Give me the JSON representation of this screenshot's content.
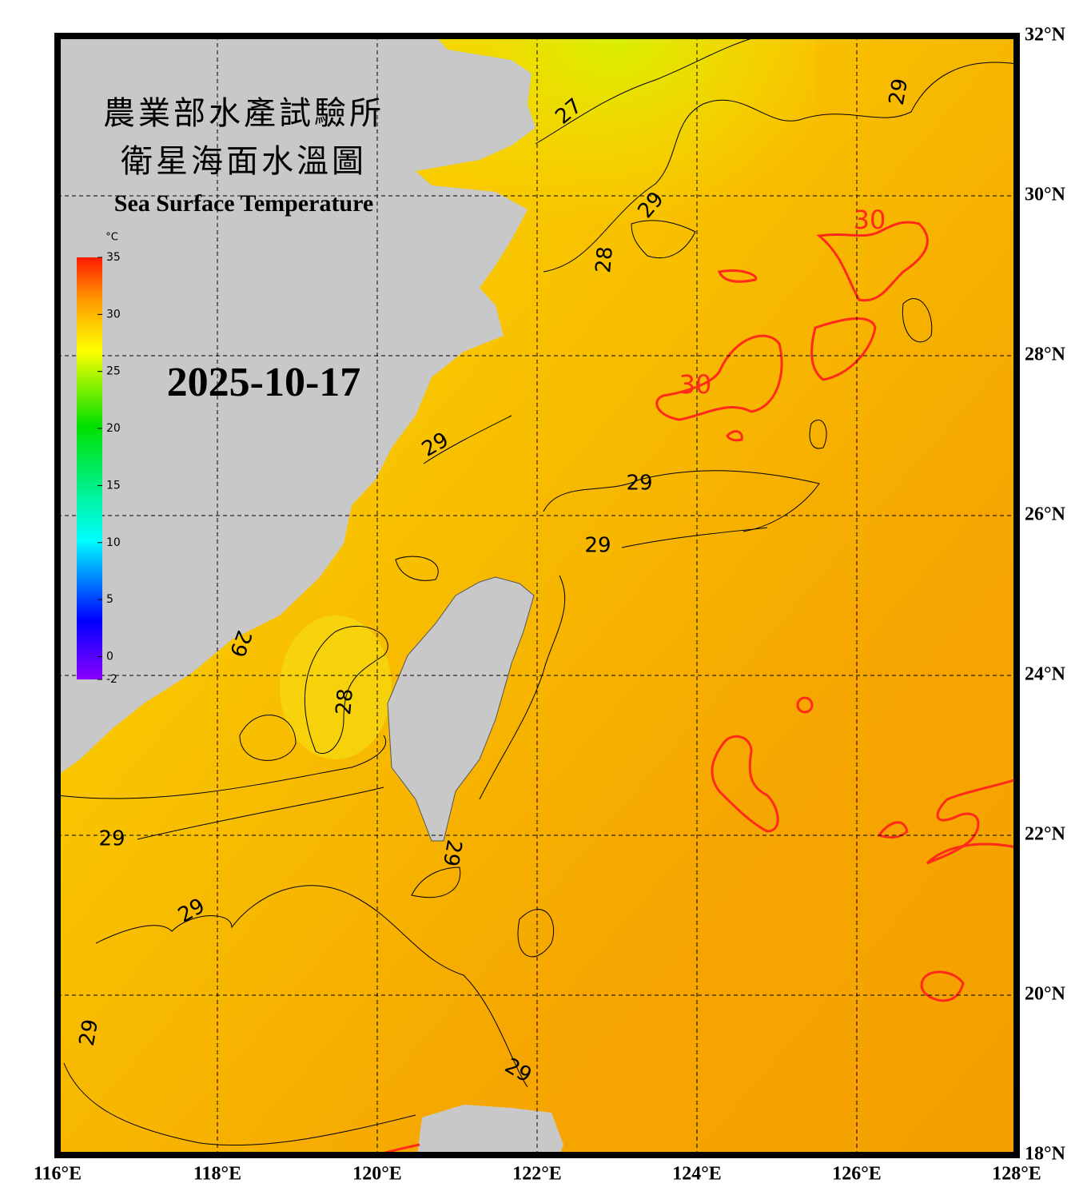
{
  "header": {
    "title_lines": [
      "農業部水產試驗所",
      "衛星海面水溫圖"
    ],
    "subtitle": "Sea Surface Temperature",
    "date": "2025-10-17"
  },
  "colorbar": {
    "unit": "°C",
    "range": [
      -2,
      35
    ],
    "ticks": [
      35,
      30,
      25,
      20,
      15,
      10,
      5,
      0,
      -2
    ]
  },
  "map": {
    "lon_range": [
      116,
      128
    ],
    "lat_range": [
      18,
      32
    ],
    "grid": true,
    "lon_ticks": [
      {
        "value": 116,
        "label": "116°E"
      },
      {
        "value": 118,
        "label": "118°E"
      },
      {
        "value": 120,
        "label": "120°E"
      },
      {
        "value": 122,
        "label": "122°E"
      },
      {
        "value": 124,
        "label": "124°E"
      },
      {
        "value": 126,
        "label": "126°E"
      },
      {
        "value": 128,
        "label": "128°E"
      }
    ],
    "lat_ticks": [
      {
        "value": 32,
        "label": "32°N"
      },
      {
        "value": 30,
        "label": "30°N"
      },
      {
        "value": 28,
        "label": "28°N"
      },
      {
        "value": 26,
        "label": "26°N"
      },
      {
        "value": 24,
        "label": "24°N"
      },
      {
        "value": 22,
        "label": "22°N"
      },
      {
        "value": 20,
        "label": "20°N"
      },
      {
        "value": 18,
        "label": "18°N"
      }
    ],
    "contour_labels": [
      27,
      29,
      29,
      28,
      30,
      30,
      29,
      29,
      29,
      28,
      29,
      29,
      29,
      29,
      29,
      29
    ],
    "contour_color": "#000000",
    "warm_level": 30,
    "warm_color": "#ff2a1a"
  }
}
